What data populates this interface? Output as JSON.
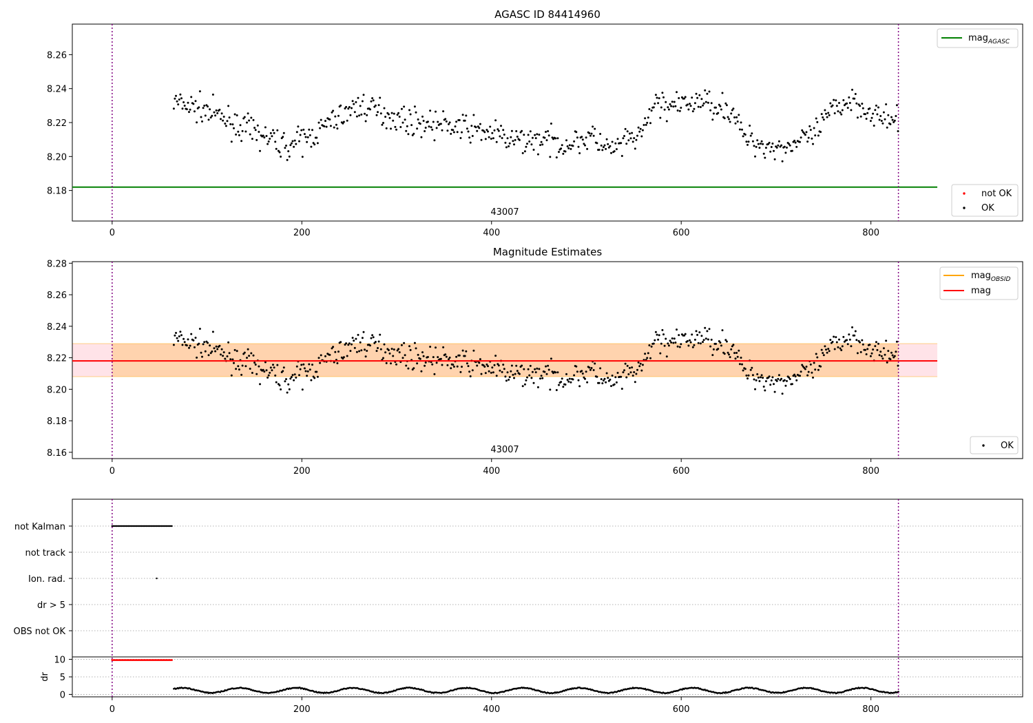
{
  "chart_data": [
    {
      "type": "scatter",
      "title": "AGASC ID 84414960",
      "xlim": [
        -42,
        960
      ],
      "ylim": [
        8.162,
        8.278
      ],
      "x_ticks": [
        0,
        200,
        400,
        600,
        800
      ],
      "y_ticks": [
        8.18,
        8.2,
        8.22,
        8.24,
        8.26
      ],
      "y_tick_labels": [
        "8.18",
        "8.20",
        "8.22",
        "8.24",
        "8.26"
      ],
      "annotation": "43007",
      "obs_boundaries": [
        0,
        829
      ],
      "mag_agasc": 8.182,
      "series": [
        {
          "name": "not OK",
          "color": "#ff0000",
          "values": []
        },
        {
          "name": "OK",
          "color": "#000000",
          "trend": [
            [
              65,
              8.232
            ],
            [
              100,
              8.227
            ],
            [
              130,
              8.219
            ],
            [
              155,
              8.213
            ],
            [
              185,
              8.206
            ],
            [
              210,
              8.212
            ],
            [
              235,
              8.222
            ],
            [
              260,
              8.23
            ],
            [
              285,
              8.226
            ],
            [
              310,
              8.221
            ],
            [
              340,
              8.219
            ],
            [
              370,
              8.217
            ],
            [
              400,
              8.214
            ],
            [
              420,
              8.209
            ],
            [
              450,
              8.21
            ],
            [
              480,
              8.207
            ],
            [
              505,
              8.212
            ],
            [
              525,
              8.203
            ],
            [
              548,
              8.21
            ],
            [
              560,
              8.214
            ],
            [
              572,
              8.232
            ],
            [
              595,
              8.229
            ],
            [
              620,
              8.233
            ],
            [
              640,
              8.23
            ],
            [
              655,
              8.226
            ],
            [
              665,
              8.212
            ],
            [
              685,
              8.207
            ],
            [
              705,
              8.205
            ],
            [
              720,
              8.208
            ],
            [
              740,
              8.212
            ],
            [
              760,
              8.228
            ],
            [
              780,
              8.234
            ],
            [
              800,
              8.226
            ],
            [
              815,
              8.222
            ],
            [
              829,
              8.219
            ]
          ]
        }
      ],
      "legends": [
        {
          "position": "top-right",
          "entries": [
            {
              "label": "mag",
              "subscript": "AGASC",
              "color": "#008000",
              "kind": "line"
            }
          ]
        },
        {
          "position": "lower-right",
          "entries": [
            {
              "label": "not OK",
              "color": "#ff0000",
              "kind": "point"
            },
            {
              "label": "OK",
              "color": "#000000",
              "kind": "point"
            }
          ]
        }
      ]
    },
    {
      "type": "scatter",
      "title": "Magnitude Estimates",
      "xlim": [
        -42,
        960
      ],
      "ylim": [
        8.156,
        8.281
      ],
      "x_ticks": [
        0,
        200,
        400,
        600,
        800
      ],
      "y_ticks": [
        8.16,
        8.18,
        8.2,
        8.22,
        8.24,
        8.26,
        8.28
      ],
      "y_tick_labels": [
        "8.16",
        "8.18",
        "8.20",
        "8.22",
        "8.24",
        "8.26",
        "8.28"
      ],
      "annotation": "43007",
      "obs_boundaries": [
        0,
        829
      ],
      "mag": 8.218,
      "mag_band": [
        8.208,
        8.229
      ],
      "mag_obsid": 8.218,
      "mag_obsid_band": [
        8.208,
        8.229
      ],
      "series": [
        {
          "name": "OK",
          "color": "#000000",
          "same_as_chart": 0
        }
      ],
      "legends": [
        {
          "position": "top-right",
          "entries": [
            {
              "label": "mag",
              "subscript": "OBSID",
              "color": "#ffa500",
              "kind": "line"
            },
            {
              "label": "mag",
              "color": "#ff0000",
              "kind": "line"
            }
          ]
        },
        {
          "position": "lower-right",
          "entries": [
            {
              "label": "OK",
              "color": "#000000",
              "kind": "point"
            }
          ]
        }
      ]
    },
    {
      "type": "scatter",
      "xlim": [
        -42,
        960
      ],
      "categories": [
        "not Kalman",
        "not track",
        "Ion. rad.",
        "dr > 5",
        "OBS not OK"
      ],
      "flag_points": [
        {
          "category": "not Kalman",
          "x_start": 0,
          "x_end": 63
        },
        {
          "category": "Ion. rad.",
          "x": 47
        }
      ],
      "obs_boundaries": [
        0,
        829
      ]
    },
    {
      "type": "scatter",
      "ylabel": "dr",
      "xlim": [
        -42,
        960
      ],
      "ylim": [
        -0.7,
        10.7
      ],
      "x_ticks": [
        0,
        200,
        400,
        600,
        800
      ],
      "x_tick_labels": [
        "0",
        "200",
        "400",
        "600",
        "800"
      ],
      "y_ticks": [
        0,
        5,
        10
      ],
      "y_tick_labels": [
        "0",
        "5",
        "10"
      ],
      "obs_boundaries": [
        0,
        829
      ],
      "series": [
        {
          "name": "not OK",
          "color": "#ff0000",
          "x_start": 0,
          "x_end": 63,
          "value": 9.8
        },
        {
          "name": "OK",
          "color": "#000000",
          "x_start": 65,
          "x_end": 829,
          "range": [
            0.3,
            2.1
          ]
        }
      ]
    }
  ]
}
